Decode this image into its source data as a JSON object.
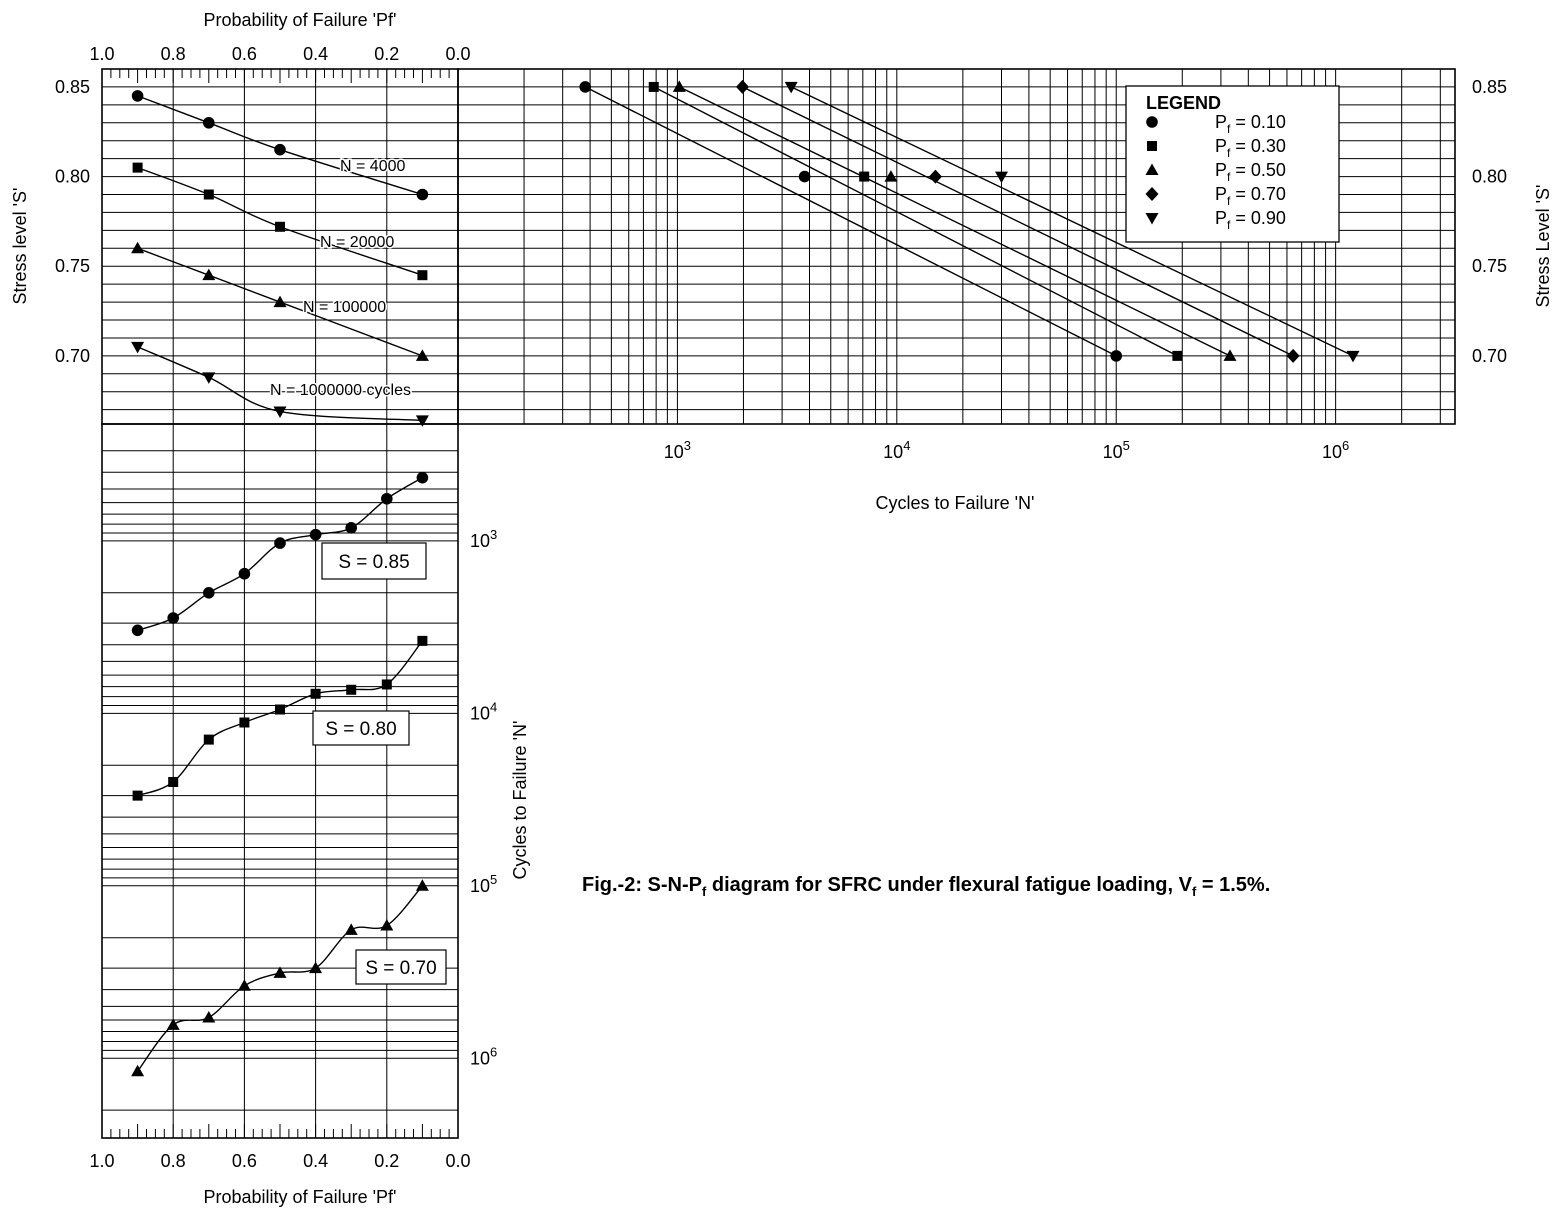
{
  "figure": {
    "caption": {
      "prefix": "Fig.-2: S-N-P",
      "sub1": "f",
      "middle": " diagram for SFRC under flexural fatigue loading, V",
      "sub2": "f",
      "suffix": " = 1.5%."
    }
  },
  "chart_data": [
    {
      "id": "stress_vs_probability",
      "type": "line",
      "xlabel": "Probability of Failure 'Pf'",
      "ylabel": "Stress level 'S'",
      "x_ticks": [
        "1.0",
        "0.8",
        "0.6",
        "0.4",
        "0.2",
        "0.0"
      ],
      "y_ticks": [
        "0.85",
        "0.80",
        "0.75",
        "0.70"
      ],
      "xlim": [
        1.0,
        0.0
      ],
      "ylim": [
        0.662,
        0.86
      ],
      "grid": true,
      "series": [
        {
          "name": "N = 4000",
          "marker": "circle",
          "x": [
            0.9,
            0.7,
            0.5,
            0.1
          ],
          "y": [
            0.845,
            0.83,
            0.815,
            0.79
          ]
        },
        {
          "name": "N = 20000",
          "marker": "square",
          "x": [
            0.9,
            0.7,
            0.5,
            0.1
          ],
          "y": [
            0.805,
            0.79,
            0.772,
            0.745
          ]
        },
        {
          "name": "N = 100000",
          "marker": "triangle-up",
          "x": [
            0.9,
            0.7,
            0.5,
            0.1
          ],
          "y": [
            0.76,
            0.745,
            0.73,
            0.7
          ]
        },
        {
          "name": "N = 1000000 cycles",
          "marker": "triangle-down",
          "x": [
            0.9,
            0.7,
            0.5,
            0.1
          ],
          "y": [
            0.705,
            0.688,
            0.669,
            0.664
          ]
        }
      ]
    },
    {
      "id": "stress_vs_cycles",
      "type": "scatter",
      "xlabel": "Cycles to Failure 'N'",
      "ylabel": "Stress Level 'S'",
      "x_scale": "log",
      "x_ticks": [
        1000,
        10000,
        100000,
        1000000
      ],
      "y_ticks": [
        "0.85",
        "0.80",
        "0.75",
        "0.70"
      ],
      "xlim": [
        100,
        3500000
      ],
      "ylim": [
        0.662,
        0.86
      ],
      "grid": true,
      "legend": {
        "title": "LEGEND",
        "position": "top-right",
        "prefix": "P",
        "sub": "f",
        "eq": "=",
        "labels": [
          "0.10",
          "0.30",
          "0.50",
          "0.70",
          "0.90"
        ]
      },
      "series": [
        {
          "name": "0.10",
          "marker": "circle",
          "x": [
            380,
            3800,
            100000
          ],
          "y": [
            0.85,
            0.8,
            0.7
          ]
        },
        {
          "name": "0.30",
          "marker": "square",
          "x": [
            780,
            7100,
            190000
          ],
          "y": [
            0.85,
            0.8,
            0.7
          ]
        },
        {
          "name": "0.50",
          "marker": "triangle-up",
          "x": [
            1020,
            9400,
            330000
          ],
          "y": [
            0.85,
            0.8,
            0.7
          ]
        },
        {
          "name": "0.70",
          "marker": "diamond",
          "x": [
            1980,
            15000,
            640000
          ],
          "y": [
            0.85,
            0.8,
            0.7
          ]
        },
        {
          "name": "0.90",
          "marker": "triangle-down",
          "x": [
            3300,
            30000,
            1200000
          ],
          "y": [
            0.85,
            0.8,
            0.7
          ]
        }
      ]
    },
    {
      "id": "cycles_vs_probability",
      "type": "line",
      "xlabel": "Probability of Failure 'Pf'",
      "ylabel": "Cycles to Failure 'N'",
      "y_scale": "log",
      "y_inverted": true,
      "x_ticks": [
        "1.0",
        "0.8",
        "0.6",
        "0.4",
        "0.2",
        "0.0"
      ],
      "y_ticks": [
        1000,
        10000,
        100000,
        1000000
      ],
      "xlim": [
        1.0,
        0.0
      ],
      "ylim": [
        210,
        2900000
      ],
      "grid": true,
      "series": [
        {
          "name": "S = 0.85",
          "marker": "circle",
          "x": [
            0.9,
            0.8,
            0.7,
            0.6,
            0.5,
            0.4,
            0.3,
            0.2,
            0.1
          ],
          "y": [
            3300,
            2800,
            2000,
            1550,
            1030,
            920,
            840,
            570,
            430
          ]
        },
        {
          "name": "S = 0.80",
          "marker": "square",
          "x": [
            0.9,
            0.8,
            0.7,
            0.6,
            0.5,
            0.4,
            0.3,
            0.2,
            0.1
          ],
          "y": [
            30000,
            25000,
            14200,
            11300,
            9500,
            7700,
            7300,
            6800,
            3800
          ]
        },
        {
          "name": "S = 0.70",
          "marker": "triangle-up",
          "x": [
            0.9,
            0.8,
            0.7,
            0.6,
            0.5,
            0.4,
            0.3,
            0.2,
            0.1
          ],
          "y": [
            1190000,
            640000,
            580000,
            380000,
            320000,
            300000,
            180000,
            170000,
            100000
          ]
        }
      ]
    }
  ]
}
